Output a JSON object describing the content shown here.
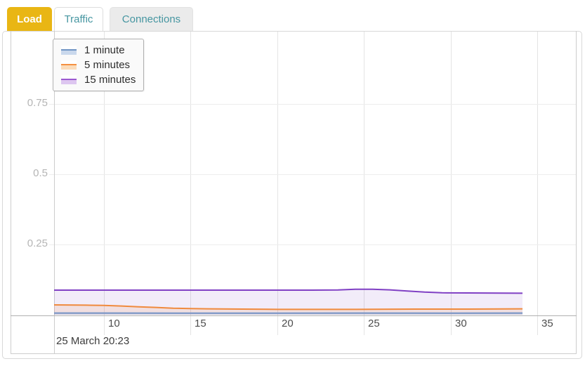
{
  "tabs": {
    "items": [
      {
        "label": "Load",
        "active": true
      },
      {
        "label": "Traffic",
        "active": false
      },
      {
        "label": "Connections",
        "active": false
      }
    ]
  },
  "legend": {
    "items": [
      {
        "label": "1 minute",
        "line_color": "#6f94c4",
        "fill_color": "#c9d8ec"
      },
      {
        "label": "5 minutes",
        "line_color": "#f49041",
        "fill_color": "#fbdcba"
      },
      {
        "label": "15 minutes",
        "line_color": "#9b59d0",
        "fill_color": "#ddc6f0"
      }
    ]
  },
  "axes": {
    "x_tick_labels": [
      "10",
      "15",
      "20",
      "25",
      "30",
      "35"
    ],
    "y_tick_labels": [
      "0.75",
      "0.5",
      "0.25"
    ],
    "annotation": "25 March 20:23"
  },
  "colors": {
    "active_tab_bg": "#e9b614",
    "active_tab_text": "#ffffff",
    "tab_text": "#4696a1",
    "series_1min": "#7795c7",
    "series_5min": "#f08a3d",
    "series_15min": "#8040c4"
  },
  "chart_data": {
    "type": "area",
    "title": "Load",
    "xlabel": "",
    "ylabel": "",
    "x_ticks": [
      10,
      15,
      20,
      25,
      30,
      35
    ],
    "y_ticks": [
      0.25,
      0.5,
      0.75
    ],
    "x_domain": [
      7.1,
      34.15
    ],
    "y_domain": [
      0,
      1.01
    ],
    "grid": true,
    "legend_position": "top-left",
    "annotation": "25 March 20:23",
    "series": [
      {
        "name": "1 minute",
        "color": "#7795c7",
        "fill_alpha": 0.25,
        "points": [
          [
            7.1,
            0.006
          ],
          [
            10,
            0.006
          ],
          [
            15,
            0.0055
          ],
          [
            20,
            0.0055
          ],
          [
            25,
            0.006
          ],
          [
            30,
            0.0055
          ],
          [
            34.15,
            0.006
          ]
        ]
      },
      {
        "name": "5 minutes",
        "color": "#f08a3d",
        "fill_alpha": 0.13,
        "points": [
          [
            7.1,
            0.035
          ],
          [
            9,
            0.034
          ],
          [
            10,
            0.033
          ],
          [
            11,
            0.031
          ],
          [
            12,
            0.028
          ],
          [
            13,
            0.026
          ],
          [
            14,
            0.023
          ],
          [
            15,
            0.022
          ],
          [
            16,
            0.021
          ],
          [
            18,
            0.02
          ],
          [
            20,
            0.019
          ],
          [
            24,
            0.019
          ],
          [
            28,
            0.02
          ],
          [
            31,
            0.02
          ],
          [
            34.15,
            0.021
          ]
        ]
      },
      {
        "name": "15 minutes",
        "color": "#8040c4",
        "fill_alpha": 0.1,
        "points": [
          [
            7.1,
            0.0875
          ],
          [
            12,
            0.0875
          ],
          [
            18,
            0.0875
          ],
          [
            22,
            0.0875
          ],
          [
            23.5,
            0.088
          ],
          [
            24.5,
            0.0905
          ],
          [
            25.5,
            0.0905
          ],
          [
            26.5,
            0.0885
          ],
          [
            27.5,
            0.0845
          ],
          [
            28.5,
            0.0805
          ],
          [
            29.5,
            0.078
          ],
          [
            31,
            0.0775
          ],
          [
            33,
            0.077
          ],
          [
            34.15,
            0.0765
          ]
        ]
      }
    ]
  }
}
